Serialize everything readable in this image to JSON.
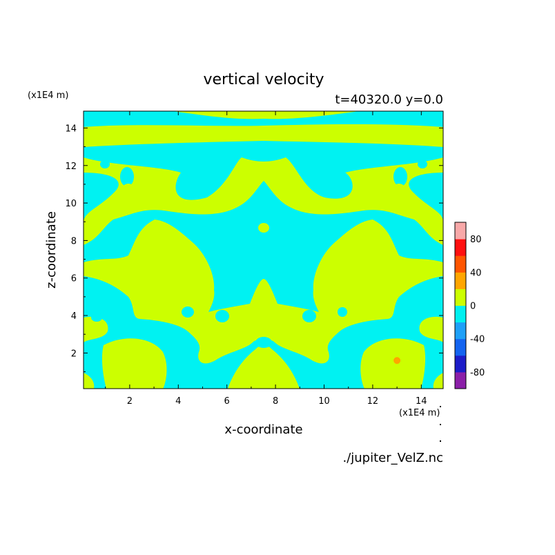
{
  "chart_data": {
    "type": "heatmap",
    "title": "vertical velocity",
    "subtitle": "t=40320.0 y=0.0",
    "xlabel": "x-coordinate",
    "ylabel": "z-coordinate",
    "x_unit": "(x1E4 m)",
    "y_unit": "(x1E4 m)",
    "source_file": "./jupiter_VelZ.nc",
    "xlim": [
      0.1,
      14.9
    ],
    "ylim": [
      0.1,
      14.9
    ],
    "x_ticks": [
      2,
      4,
      6,
      8,
      10,
      12,
      14
    ],
    "y_ticks": [
      2,
      4,
      6,
      8,
      10,
      12,
      14
    ],
    "colorbar": {
      "range": [
        -100,
        100
      ],
      "levels": [
        -100,
        -80,
        -60,
        -40,
        -20,
        0,
        20,
        40,
        60,
        80,
        100
      ],
      "tick_labels": [
        "-80",
        "-40",
        "0",
        "40",
        "80"
      ],
      "tick_values": [
        -80,
        -40,
        0,
        40,
        80
      ],
      "colors": [
        "#8b1fa8",
        "#1c1cc8",
        "#1464f0",
        "#1ea0f8",
        "#00f0f0",
        "#ccff00",
        "#ffa500",
        "#ff5500",
        "#ff1010",
        "#f8a8a8"
      ]
    },
    "field_colors": {
      "negative": "#00f2f2",
      "positive": "#ccff00",
      "hot_spot": "#ffa500"
    },
    "hot_spot": {
      "x": 13.0,
      "z": 1.6
    }
  }
}
